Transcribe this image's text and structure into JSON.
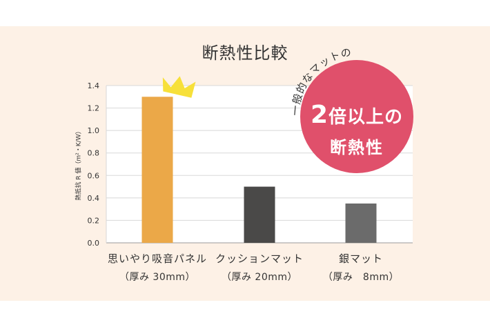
{
  "chart_data": {
    "type": "bar",
    "title": "断熱性比較",
    "ylabel": "熱抵抗 R 値（m²・K/W）",
    "ylim": [
      0,
      1.4
    ],
    "yticks": [
      "0.0",
      "0.2",
      "0.4",
      "0.6",
      "0.8",
      "1.0",
      "1.2",
      "1.4"
    ],
    "categories": [
      {
        "name": "思いやり吸音パネル",
        "sub": "（厚み 30mm）"
      },
      {
        "name": "クッションマット",
        "sub": "（厚み 20mm）"
      },
      {
        "name": "銀マット",
        "sub": "（厚み　8mm）"
      }
    ],
    "values": [
      1.3,
      0.5,
      0.35
    ],
    "bar_colors": [
      "#eba848",
      "#4a4948",
      "#6b6b6b"
    ],
    "grid": true
  },
  "badge": {
    "arc_text": "一般的なマットの",
    "main_number": "2",
    "main_text": "倍以上の",
    "sub_text": "断熱性",
    "color": "#e0506b"
  },
  "crown": {
    "icon": "crown-icon",
    "color": "#f7e03a"
  }
}
